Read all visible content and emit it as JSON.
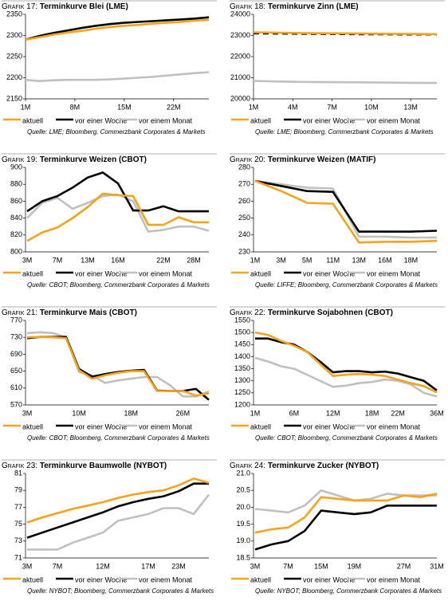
{
  "chart_data": [
    {
      "type": "line",
      "label": "Grafik 17:",
      "title": "Terminkurve Blei (LME)",
      "source": "Quelle: LME; Bloomberg, Commerzbank Corporates & Markets",
      "x": [
        1,
        3,
        5,
        7,
        9,
        11,
        13,
        15,
        17,
        19,
        21,
        23,
        25,
        27
      ],
      "xlim": [
        1,
        27
      ],
      "xticks": [
        {
          "value": 1,
          "label": "1M"
        },
        {
          "value": 8,
          "label": "8M"
        },
        {
          "value": 15,
          "label": "15M"
        },
        {
          "value": 22,
          "label": "22M"
        }
      ],
      "ylim": [
        2150,
        2350
      ],
      "yticks": [
        2150,
        2200,
        2250,
        2300,
        2350
      ],
      "series": [
        {
          "name": "aktuell",
          "color": "#f7a21b",
          "values": [
            2290,
            2296,
            2302,
            2307,
            2311,
            2316,
            2320,
            2323,
            2325,
            2328,
            2330,
            2332,
            2335,
            2337
          ]
        },
        {
          "name": "vor einer Woche",
          "color": "#000000",
          "values": [
            2290,
            2299,
            2306,
            2312,
            2318,
            2323,
            2327,
            2330,
            2332,
            2334,
            2336,
            2338,
            2340,
            2343
          ]
        },
        {
          "name": "vor einem Monat",
          "color": "#c0c0c0",
          "values": [
            2195,
            2192,
            2194,
            2195,
            2195,
            2195,
            2196,
            2198,
            2200,
            2202,
            2205,
            2208,
            2211,
            2213
          ]
        }
      ]
    },
    {
      "type": "line",
      "label": "Grafik 18:",
      "title": "Terminkurve Zinn (LME)",
      "source": "Quelle: LME; Bloomberg, Commerzbank Corporates & Markets",
      "x": [
        1,
        3,
        5,
        7,
        9,
        11,
        13,
        15
      ],
      "xlim": [
        1,
        15
      ],
      "xticks": [
        {
          "value": 1,
          "label": "1M"
        },
        {
          "value": 4,
          "label": "4M"
        },
        {
          "value": 7,
          "label": "7M"
        },
        {
          "value": 10,
          "label": "10M"
        },
        {
          "value": 13,
          "label": "13M"
        }
      ],
      "ylim": [
        20000,
        24000
      ],
      "yticks": [
        20000,
        21000,
        22000,
        23000,
        24000
      ],
      "series": [
        {
          "name": "aktuell",
          "color": "#f7a21b",
          "values": [
            23150,
            23130,
            23110,
            23100,
            23090,
            23080,
            23070,
            23060
          ]
        },
        {
          "name": "vor einer Woche",
          "color": "#000000",
          "dashed": true,
          "values": [
            23100,
            23090,
            23080,
            23070,
            23060,
            23055,
            23050,
            23050
          ]
        },
        {
          "name": "vor einem Monat",
          "color": "#c0c0c0",
          "values": [
            20850,
            20820,
            20800,
            20790,
            20780,
            20770,
            20760,
            20750
          ]
        }
      ]
    },
    {
      "type": "line",
      "label": "Grafik 19:",
      "title": "Terminkurve Weizen (CBOT)",
      "source": "Quelle: CBOT; Bloomberg, Commerzbank Corporates & Markets",
      "categories": [
        "3M",
        null,
        "7M",
        null,
        "13M",
        null,
        "16M",
        null,
        null,
        "22M",
        null,
        "28M",
        null
      ],
      "ylim": [
        800,
        900
      ],
      "yticks": [
        800,
        820,
        840,
        860,
        880,
        900
      ],
      "series": [
        {
          "name": "aktuell",
          "color": "#f7a21b",
          "values": [
            813,
            823,
            829,
            840,
            853,
            869,
            867,
            866,
            832,
            832,
            841,
            835,
            835
          ]
        },
        {
          "name": "vor einer Woche",
          "color": "#000000",
          "values": [
            848,
            860,
            866,
            876,
            888,
            894,
            881,
            849,
            849,
            854,
            848,
            848,
            848
          ]
        },
        {
          "name": "vor einem Monat",
          "color": "#c0c0c0",
          "values": [
            840,
            858,
            864,
            851,
            858,
            866,
            868,
            860,
            824,
            826,
            830,
            830,
            825
          ]
        }
      ]
    },
    {
      "type": "line",
      "label": "Grafik 20:",
      "title": "Terminkurve Weizen (MATIF)",
      "source": "Quelle: LIFFE; Bloomberg, Commerzbank Corporates & Markets",
      "categories": [
        "1M",
        "3M",
        "5M",
        "11M",
        "13M",
        "16M",
        "18M",
        null
      ],
      "ylim": [
        230,
        280
      ],
      "yticks": [
        230,
        240,
        250,
        260,
        270,
        280
      ],
      "series": [
        {
          "name": "aktuell",
          "color": "#f7a21b",
          "values": [
            272,
            266,
            259,
            258.5,
            235.5,
            236,
            236,
            236.5
          ]
        },
        {
          "name": "vor einer Woche",
          "color": "#000000",
          "values": [
            272,
            269,
            266,
            265.5,
            242,
            242,
            242,
            242.5
          ]
        },
        {
          "name": "vor einem Monat",
          "color": "#c0c0c0",
          "values": [
            272,
            270,
            268,
            267.5,
            239,
            239,
            238.5,
            238.5
          ]
        }
      ]
    },
    {
      "type": "line",
      "label": "Grafik 21:",
      "title": "Terminkurve Mais (CBOT)",
      "source": "Quelle: CBOT; Bloomberg, Commerzbank Corporates & Markets",
      "categories": [
        "3M",
        null,
        null,
        null,
        "10M",
        null,
        null,
        null,
        "18M",
        null,
        null,
        null,
        "26M",
        null,
        null
      ],
      "ylim": [
        570,
        770
      ],
      "yticks": [
        570,
        610,
        650,
        690,
        730,
        770
      ],
      "series": [
        {
          "name": "aktuell",
          "color": "#f7a21b",
          "values": [
            730,
            731,
            730,
            728,
            652,
            632,
            640,
            646,
            650,
            650,
            603,
            603,
            603,
            592,
            598
          ]
        },
        {
          "name": "vor einer Woche",
          "color": "#000000",
          "values": [
            728,
            731,
            731,
            731,
            655,
            637,
            643,
            648,
            651,
            653,
            604,
            603,
            603,
            608,
            582
          ]
        },
        {
          "name": "vor einem Monat",
          "color": "#c0c0c0",
          "values": [
            740,
            742,
            740,
            730,
            648,
            640,
            622,
            628,
            632,
            636,
            636,
            617,
            590,
            590,
            602
          ]
        }
      ]
    },
    {
      "type": "line",
      "label": "Grafik 22:",
      "title": "Terminkurve Sojabohnen (CBOT)",
      "source": "Quelle: CBOT; Bloomberg, Commerzbank Corporates & Markets",
      "categories": [
        "1M",
        null,
        null,
        "6M",
        null,
        null,
        "12M",
        null,
        null,
        "18M",
        null,
        "22M",
        null,
        null,
        "36M"
      ],
      "ylim": [
        1200,
        1550
      ],
      "yticks": [
        1200,
        1250,
        1300,
        1350,
        1400,
        1450,
        1500,
        1550
      ],
      "series": [
        {
          "name": "aktuell",
          "color": "#f7a21b",
          "values": [
            1500,
            1490,
            1465,
            1445,
            1420,
            1370,
            1320,
            1325,
            1328,
            1325,
            1320,
            1305,
            1290,
            1278,
            1252
          ]
        },
        {
          "name": "vor einer Woche",
          "color": "#000000",
          "values": [
            1475,
            1475,
            1460,
            1450,
            1420,
            1380,
            1335,
            1340,
            1340,
            1335,
            1338,
            1330,
            1315,
            1300,
            1260
          ]
        },
        {
          "name": "vor einem Monat",
          "color": "#c0c0c0",
          "values": [
            1395,
            1380,
            1360,
            1350,
            1325,
            1300,
            1275,
            1280,
            1290,
            1295,
            1305,
            1300,
            1285,
            1250,
            1235
          ]
        }
      ]
    },
    {
      "type": "line",
      "label": "Grafik 23:",
      "title": "Terminkurve Baumwolle (NYBOT)",
      "source": "Quelle: NYBOT; Bloomberg, Commerzbank Corporates & Markets",
      "categories": [
        "3M",
        null,
        "7M",
        null,
        null,
        "12M",
        null,
        null,
        "17M",
        null,
        "23M",
        null,
        null
      ],
      "ylim": [
        71,
        81
      ],
      "yticks": [
        71,
        73,
        75,
        77,
        79,
        81
      ],
      "series": [
        {
          "name": "aktuell",
          "color": "#f7a21b",
          "values": [
            75.2,
            75.8,
            76.3,
            76.8,
            77.2,
            77.6,
            78.1,
            78.5,
            78.8,
            79.0,
            79.6,
            80.4,
            79.9
          ]
        },
        {
          "name": "vor einer Woche",
          "color": "#000000",
          "values": [
            73.4,
            74.0,
            74.6,
            75.2,
            75.8,
            76.4,
            77.1,
            77.6,
            78.0,
            78.3,
            78.9,
            79.8,
            79.8
          ]
        },
        {
          "name": "vor einem Monat",
          "color": "#c0c0c0",
          "values": [
            72.0,
            72.0,
            72.0,
            72.8,
            73.4,
            74.0,
            75.4,
            75.8,
            76.2,
            76.9,
            76.9,
            76.2,
            78.5
          ]
        }
      ]
    },
    {
      "type": "line",
      "label": "Grafik 24:",
      "title": "Terminkurve Zucker (NYBOT)",
      "source": "Quelle: NYBOT; Bloomberg, Commerzbank Corporates & Markets",
      "categories": [
        "3M",
        null,
        "7M",
        null,
        "15M",
        null,
        "19M",
        null,
        null,
        "27M",
        null,
        "31M"
      ],
      "ylim": [
        18.5,
        21.0
      ],
      "yticks": [
        18.5,
        {
          "value": 19,
          "label": "19.0"
        },
        19.5,
        {
          "value": 20,
          "label": "20.0"
        },
        20.5,
        {
          "value": 21,
          "label": "21.0"
        }
      ],
      "series": [
        {
          "name": "aktuell",
          "color": "#f7a21b",
          "values": [
            19.25,
            19.35,
            19.4,
            19.7,
            20.3,
            20.25,
            20.2,
            20.2,
            20.2,
            20.35,
            20.3,
            20.4
          ]
        },
        {
          "name": "vor einer Woche",
          "color": "#000000",
          "values": [
            18.75,
            18.9,
            19.0,
            19.3,
            19.9,
            19.85,
            19.8,
            19.85,
            20.05,
            20.05,
            20.05,
            20.05
          ]
        },
        {
          "name": "vor einem Monat",
          "color": "#c0c0c0",
          "values": [
            19.95,
            19.9,
            19.85,
            20.05,
            20.5,
            20.35,
            20.2,
            20.25,
            20.4,
            20.35,
            20.35,
            20.35
          ]
        }
      ]
    }
  ]
}
